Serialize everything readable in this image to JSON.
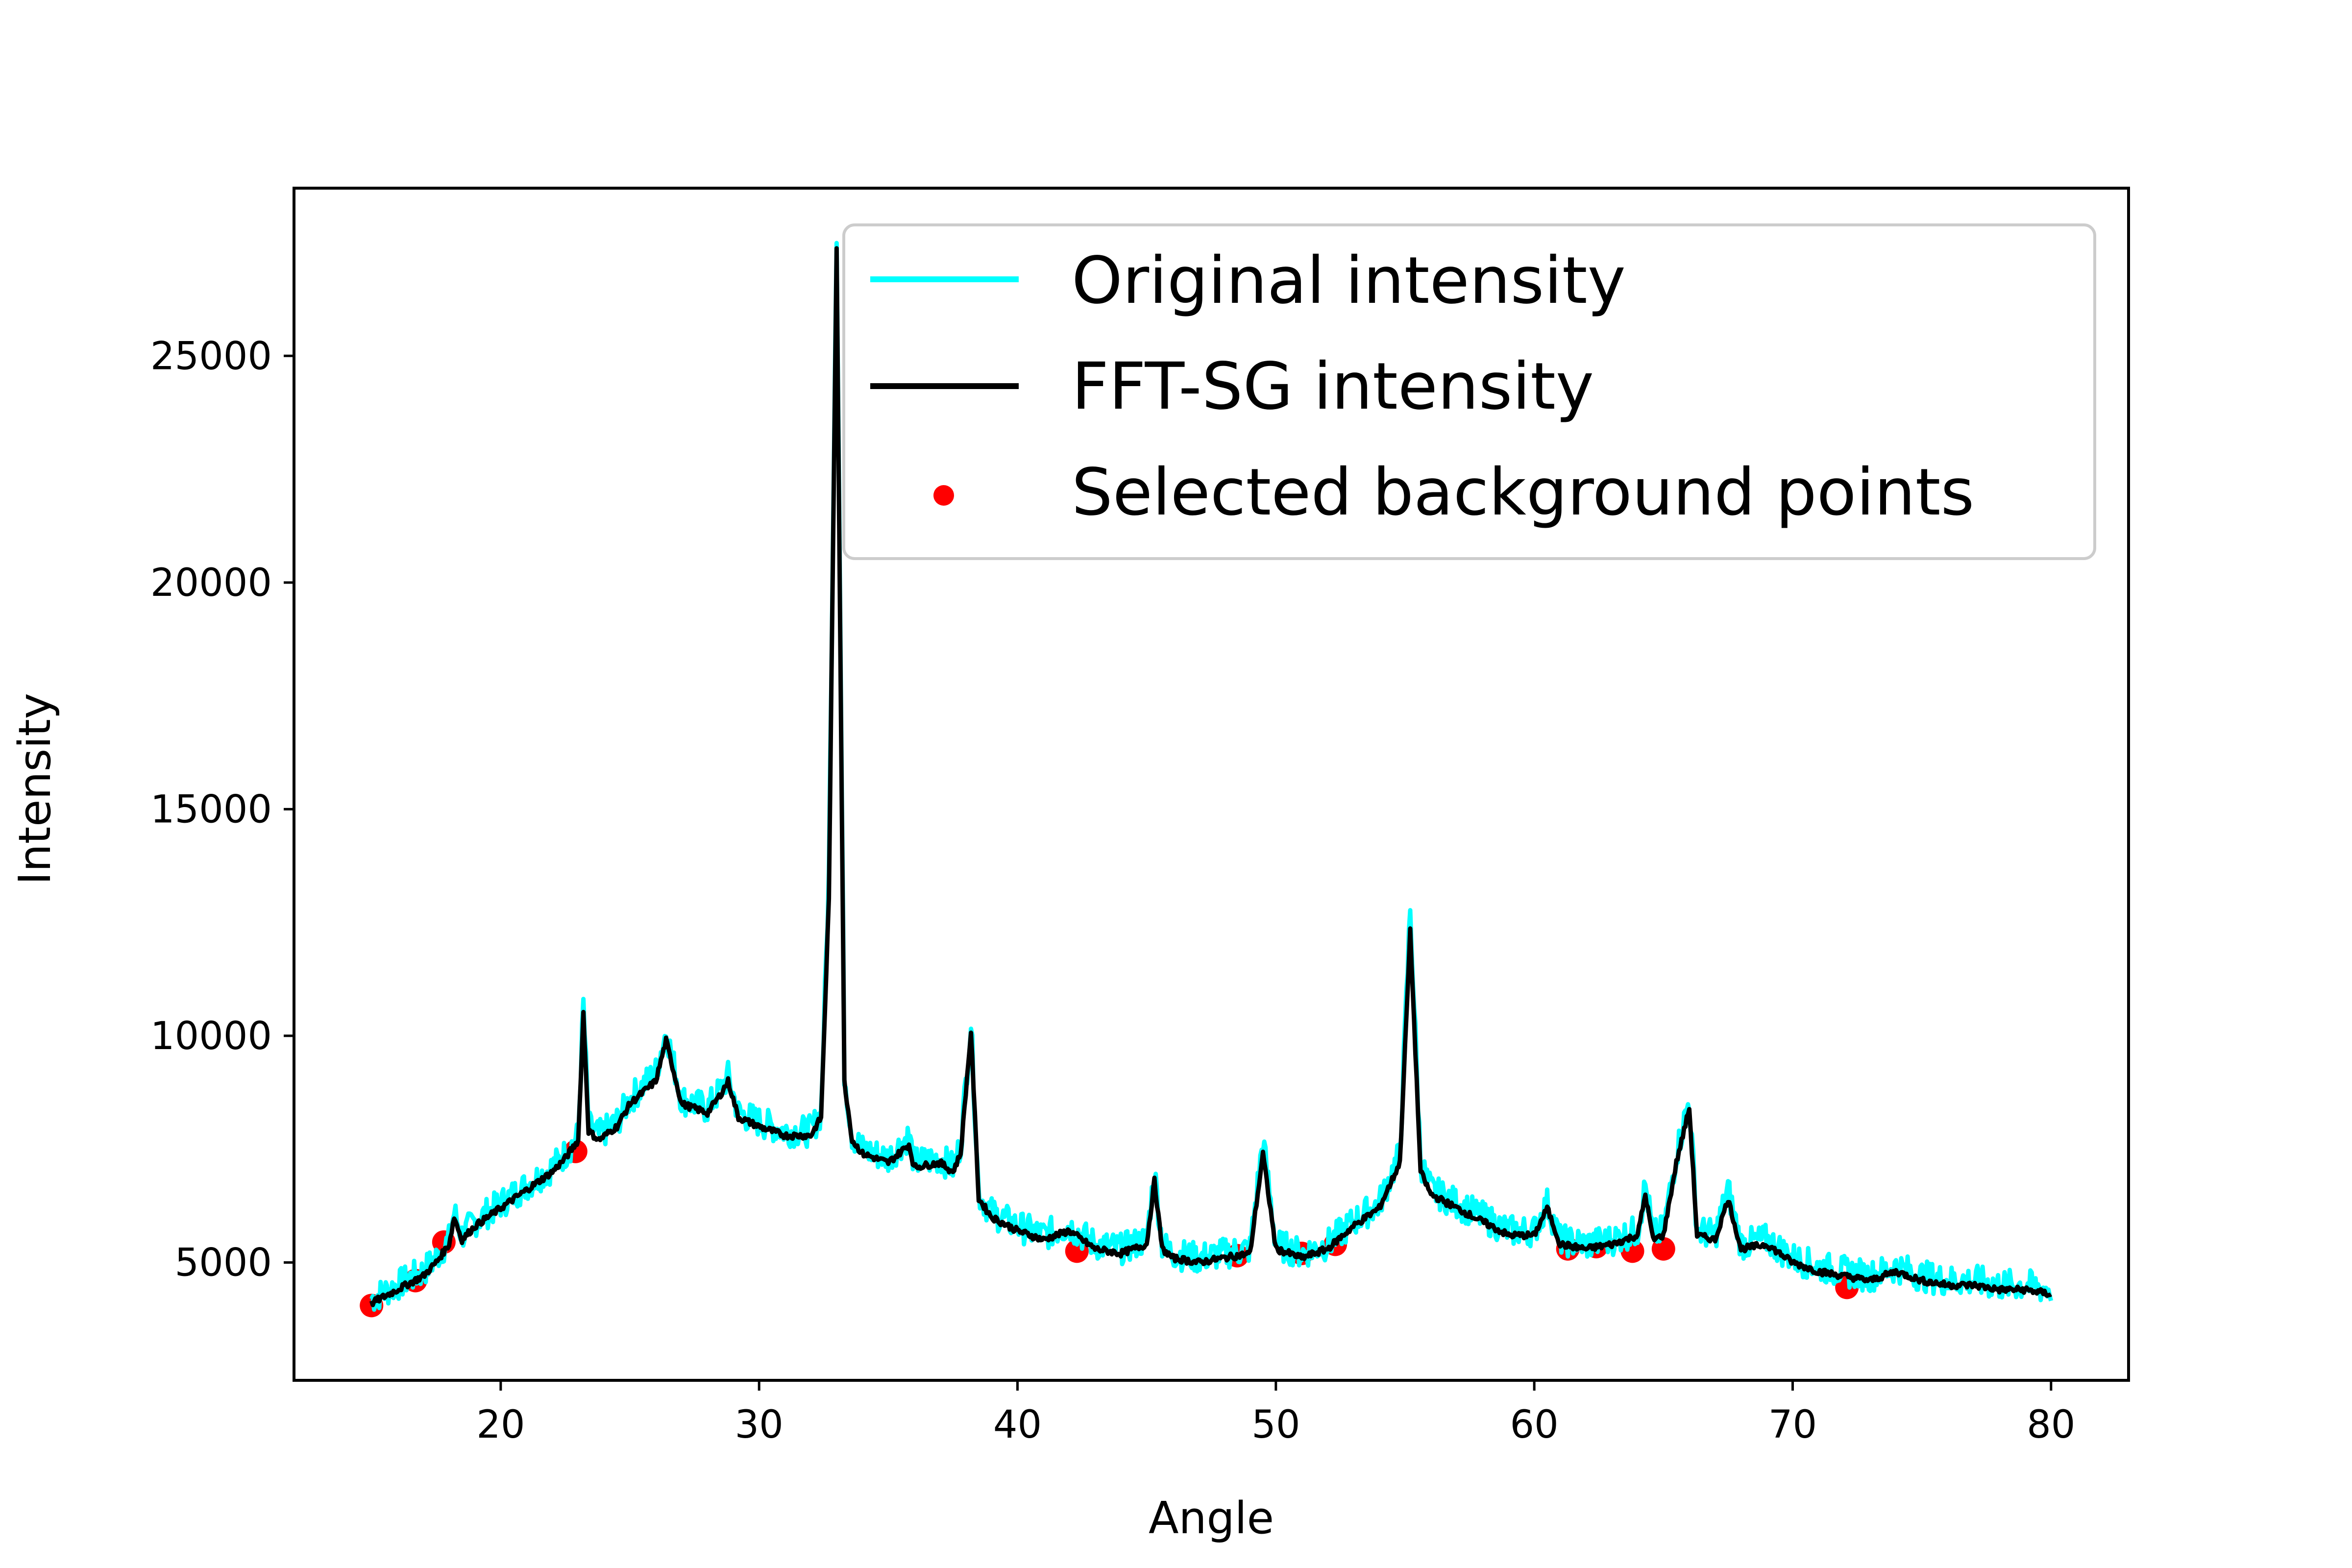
{
  "chart_data": {
    "type": "line",
    "title": "",
    "xlabel": "Angle",
    "ylabel": "Intensity",
    "xlim": [
      12,
      83
    ],
    "ylim": [
      2400,
      28700
    ],
    "xticks": [
      20,
      30,
      40,
      50,
      60,
      70,
      80
    ],
    "yticks": [
      5000,
      10000,
      15000,
      20000,
      25000
    ],
    "grid": false,
    "legend_position": "top-right",
    "series": [
      {
        "name": "Original intensity",
        "kind": "line",
        "color": "#00ffff",
        "noise_amplitude": 350,
        "x": [
          15,
          16,
          17,
          17.5,
          18,
          18.2,
          18.5,
          19,
          20,
          21,
          22,
          22.5,
          23,
          23.2,
          23.4,
          23.8,
          24.5,
          25,
          26,
          26.4,
          27,
          28,
          28.5,
          28.8,
          29.2,
          30,
          31,
          32,
          32.4,
          32.7,
          33,
          33.3,
          33.6,
          34,
          35,
          35.8,
          36,
          37,
          37.5,
          37.8,
          38.2,
          38.5,
          39,
          40,
          41,
          42,
          43,
          44,
          45,
          45.3,
          45.6,
          46,
          47,
          48,
          49,
          49.5,
          50,
          51,
          52,
          53,
          54,
          54.8,
          55.2,
          55.6,
          56,
          57,
          58,
          59,
          60,
          60.5,
          61,
          62,
          63,
          64,
          64.3,
          64.6,
          65,
          65.5,
          66,
          66.3,
          67,
          67.5,
          68,
          69,
          70,
          71,
          72,
          73,
          74,
          75,
          76,
          77,
          78,
          79,
          80
        ],
        "y": [
          4200,
          4500,
          4800,
          5100,
          5500,
          6100,
          5600,
          5900,
          6300,
          6700,
          7100,
          7400,
          7800,
          10700,
          8000,
          7800,
          8100,
          8600,
          9200,
          10100,
          8600,
          8400,
          8800,
          9100,
          8300,
          8100,
          7900,
          7900,
          8300,
          13500,
          27800,
          9200,
          7800,
          7500,
          7300,
          7800,
          7200,
          7300,
          7100,
          7600,
          10300,
          6500,
          6100,
          5800,
          5600,
          5800,
          5400,
          5300,
          5500,
          7000,
          5400,
          5200,
          5100,
          5200,
          5300,
          7700,
          5400,
          5200,
          5400,
          5900,
          6300,
          7400,
          12800,
          7200,
          6600,
          6300,
          6000,
          5700,
          5700,
          6300,
          5500,
          5400,
          5500,
          5700,
          6700,
          5600,
          5700,
          7400,
          8600,
          5700,
          5600,
          6600,
          5400,
          5500,
          5100,
          4900,
          4800,
          4700,
          4900,
          4700,
          4600,
          4600,
          4500,
          4500,
          4400
        ]
      },
      {
        "name": "FFT-SG intensity",
        "kind": "line",
        "color": "#000000",
        "noise_amplitude": 70,
        "x": [
          15,
          16,
          17,
          17.5,
          18,
          18.2,
          18.5,
          19,
          20,
          21,
          22,
          22.5,
          23,
          23.2,
          23.4,
          23.8,
          24.5,
          25,
          26,
          26.4,
          27,
          28,
          28.5,
          28.8,
          29.2,
          30,
          31,
          32,
          32.4,
          32.7,
          33,
          33.3,
          33.6,
          34,
          35,
          35.8,
          36,
          37,
          37.5,
          37.8,
          38.2,
          38.5,
          39,
          40,
          41,
          42,
          43,
          44,
          45,
          45.3,
          45.6,
          46,
          47,
          48,
          49,
          49.5,
          50,
          51,
          52,
          53,
          54,
          54.8,
          55.2,
          55.6,
          56,
          57,
          58,
          59,
          60,
          60.5,
          61,
          62,
          63,
          64,
          64.3,
          64.6,
          65,
          65.5,
          66,
          66.3,
          67,
          67.5,
          68,
          69,
          70,
          71,
          72,
          73,
          74,
          75,
          76,
          77,
          78,
          79,
          80
        ],
        "y": [
          4100,
          4400,
          4700,
          5000,
          5400,
          6000,
          5500,
          5800,
          6200,
          6600,
          7000,
          7300,
          7700,
          10500,
          7900,
          7700,
          8000,
          8500,
          9000,
          9900,
          8500,
          8300,
          8700,
          9000,
          8200,
          8000,
          7800,
          7800,
          8200,
          13000,
          27400,
          9000,
          7700,
          7400,
          7200,
          7600,
          7100,
          7200,
          7000,
          7400,
          10100,
          6400,
          6000,
          5700,
          5500,
          5700,
          5300,
          5200,
          5400,
          6800,
          5300,
          5100,
          5000,
          5100,
          5200,
          7400,
          5300,
          5100,
          5300,
          5800,
          6200,
          7200,
          12300,
          7000,
          6500,
          6200,
          5900,
          5600,
          5600,
          6200,
          5400,
          5300,
          5400,
          5600,
          6500,
          5500,
          5600,
          7200,
          8400,
          5600,
          5500,
          6400,
          5300,
          5400,
          5000,
          4800,
          4700,
          4600,
          4800,
          4600,
          4500,
          4500,
          4400,
          4400,
          4300
        ]
      },
      {
        "name": "Selected background points",
        "kind": "scatter",
        "color": "#ff0000",
        "x": [
          15.0,
          16.7,
          17.8,
          22.9,
          42.3,
          48.5,
          51.0,
          52.3,
          61.3,
          62.4,
          63.8,
          65.0,
          72.1
        ],
        "y": [
          4050,
          4600,
          5450,
          7450,
          5250,
          5150,
          5200,
          5400,
          5300,
          5350,
          5250,
          5300,
          4450
        ]
      }
    ]
  }
}
